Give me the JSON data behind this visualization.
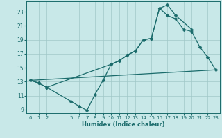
{
  "xlabel": "Humidex (Indice chaleur)",
  "bg_color": "#c8e8e8",
  "line_color": "#1a6b6b",
  "grid_color": "#a0c8c8",
  "xlim": [
    -0.5,
    23.5
  ],
  "ylim": [
    8.5,
    24.5
  ],
  "xticks": [
    0,
    1,
    2,
    5,
    6,
    7,
    8,
    9,
    10,
    11,
    12,
    13,
    14,
    15,
    16,
    17,
    18,
    19,
    20,
    21,
    22,
    23
  ],
  "yticks": [
    9,
    11,
    13,
    15,
    17,
    19,
    21,
    23
  ],
  "line1_upper": {
    "x": [
      0,
      1,
      2,
      10,
      11,
      12,
      13,
      14,
      15,
      16,
      17,
      18,
      20
    ],
    "y": [
      13.2,
      12.8,
      12.2,
      15.5,
      16.0,
      16.8,
      17.4,
      19.0,
      19.2,
      23.5,
      24.0,
      22.5,
      20.5
    ]
  },
  "line2_lower": {
    "x": [
      0,
      1,
      2,
      5,
      6,
      7,
      8,
      9,
      10,
      11,
      12,
      13,
      14,
      15,
      16,
      17,
      18,
      19,
      20,
      21,
      22,
      23
    ],
    "y": [
      13.2,
      12.8,
      12.2,
      10.2,
      9.5,
      8.9,
      11.2,
      13.2,
      15.5,
      16.0,
      16.8,
      17.4,
      19.0,
      19.2,
      23.5,
      22.5,
      22.0,
      20.5,
      20.2,
      18.0,
      16.5,
      14.7
    ]
  },
  "line3_diagonal": {
    "x": [
      0,
      23
    ],
    "y": [
      13.2,
      14.7
    ]
  }
}
